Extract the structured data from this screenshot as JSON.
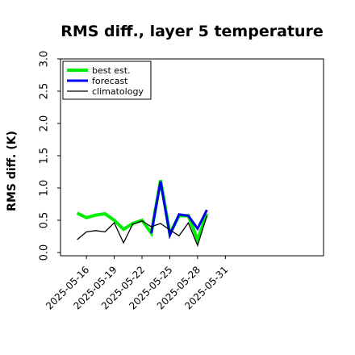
{
  "chart_data": {
    "type": "line",
    "title": "RMS diff., layer 5 temperature",
    "xlabel": "",
    "ylabel": "RMS diff. (K)",
    "ylim": [
      -0.05,
      3.0
    ],
    "yticks": [
      "0.0",
      "0.5",
      "1.0",
      "1.5",
      "2.0",
      "2.5",
      "3.0"
    ],
    "ytick_values": [
      0.0,
      0.5,
      1.0,
      1.5,
      2.0,
      2.5,
      3.0
    ],
    "xlim": [
      -2.8,
      25.6
    ],
    "xticks": [
      "2025-05-16",
      "2025-05-19",
      "2025-05-22",
      "2025-05-25",
      "2025-05-28",
      "2025-05-31"
    ],
    "xtick_positions": [
      0,
      3,
      6,
      9,
      12,
      15
    ],
    "xtick_colors": [
      "#000000",
      "#000000",
      "#008000",
      "#000000",
      "#000000",
      "#000000"
    ],
    "legend_position": "upper left",
    "grid": false,
    "x": [
      -1,
      0,
      1,
      2,
      3,
      4,
      5,
      6,
      7,
      8,
      9,
      10,
      11,
      12,
      13
    ],
    "series": [
      {
        "name": "best est.",
        "color": "#00ee00",
        "values": [
          0.61,
          0.54,
          0.58,
          0.6,
          0.5,
          0.36,
          0.45,
          0.5,
          0.3,
          1.12,
          0.29,
          0.57,
          0.57,
          0.2,
          0.6
        ]
      },
      {
        "name": "forecast",
        "color": "#0000ee",
        "values": [
          null,
          null,
          null,
          null,
          null,
          null,
          null,
          null,
          0.3,
          1.1,
          0.27,
          0.59,
          0.57,
          0.37,
          0.66
        ]
      },
      {
        "name": "climatology",
        "color": "#000000",
        "values": [
          0.2,
          0.32,
          0.34,
          0.32,
          0.46,
          0.15,
          0.44,
          0.49,
          0.4,
          0.45,
          0.35,
          0.26,
          0.46,
          0.11,
          0.57
        ]
      }
    ]
  }
}
